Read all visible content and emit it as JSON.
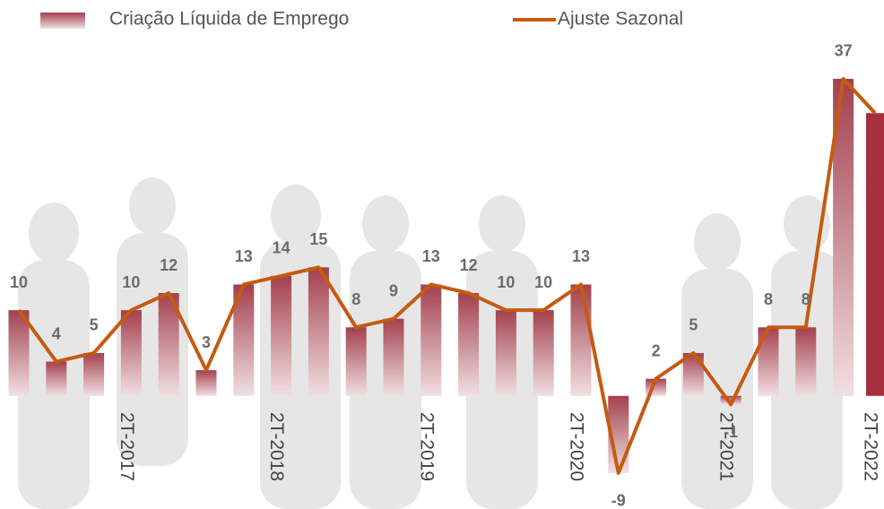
{
  "chart_data": {
    "type": "bar-line",
    "categories": [
      null,
      null,
      null,
      "2T-2017",
      null,
      null,
      null,
      "2T-2018",
      null,
      null,
      null,
      "2T-2019",
      null,
      null,
      null,
      "2T-2020",
      null,
      null,
      null,
      "2T-2021",
      null,
      null,
      null,
      "2T-2022"
    ],
    "series": [
      {
        "name": "Criação Líquida de Emprego",
        "type": "bar",
        "color": "#a3404e",
        "highlight_color": "#a52f3c",
        "values": [
          10,
          4,
          5,
          10,
          12,
          3,
          13,
          14,
          15,
          8,
          9,
          13,
          12,
          10,
          10,
          13,
          -9,
          2,
          5,
          -1,
          8,
          8,
          37,
          33
        ],
        "value_labels": [
          "10",
          "4",
          "5",
          "10",
          "12",
          "3",
          "13",
          "14",
          "15",
          "8",
          "9",
          "13",
          "12",
          "10",
          "10",
          "13",
          "-9",
          "2",
          "5",
          "-1",
          "8",
          "8",
          "37",
          null
        ]
      },
      {
        "name": "Ajuste Sazonal",
        "type": "line",
        "color": "#c55a11",
        "values": [
          10,
          4,
          5,
          10,
          12,
          3,
          13,
          14,
          15,
          8,
          9,
          13,
          12,
          10,
          10,
          13,
          -9,
          2,
          5,
          -1,
          8,
          8,
          37,
          33
        ]
      }
    ],
    "ylim": [
      -13.2,
      46.2
    ]
  }
}
